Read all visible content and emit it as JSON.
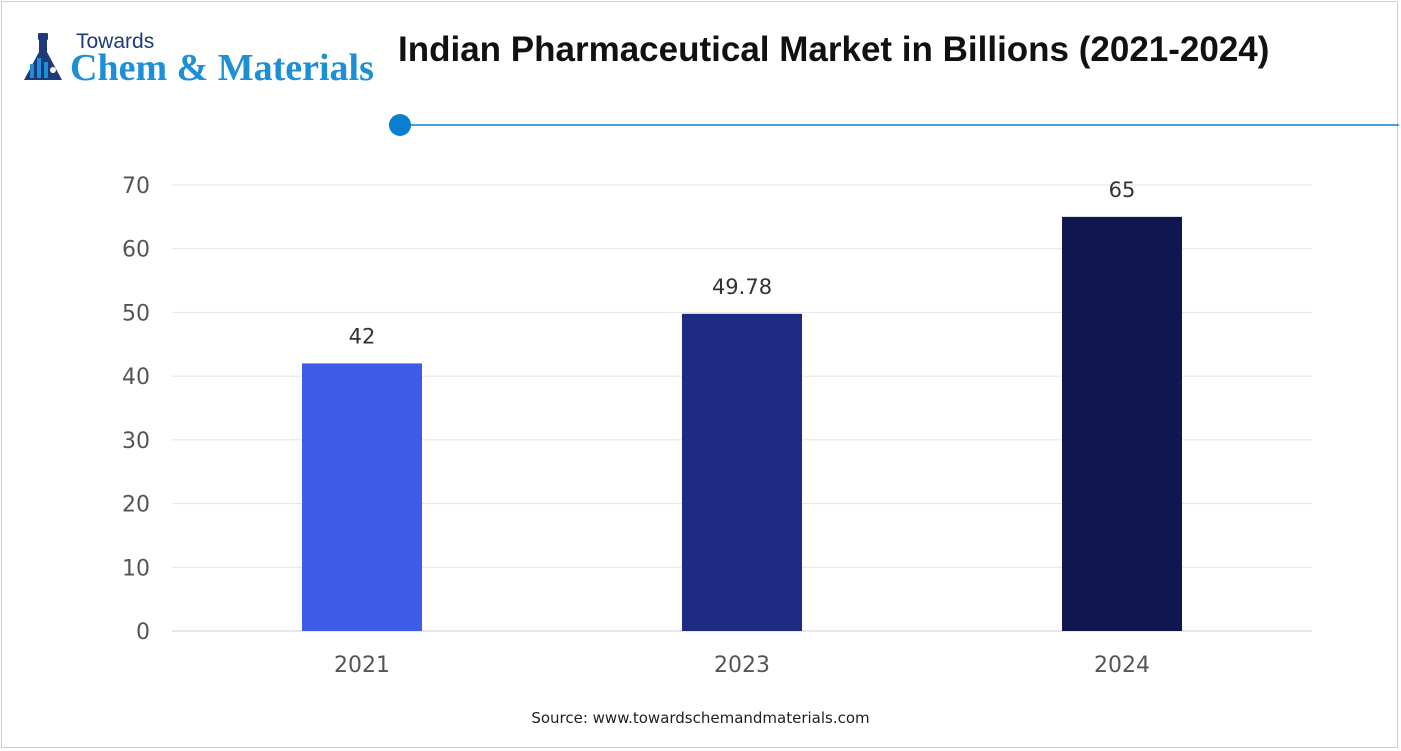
{
  "logo": {
    "towards": "Towards",
    "main": "Chem & Materials"
  },
  "colors": {
    "bar_2021": "#3d5ce8",
    "bar_2023": "#1d2c82",
    "bar_2024": "#0f1650",
    "accent": "#0a7fd1"
  },
  "chart_data": {
    "type": "bar",
    "title": "Indian Pharmaceutical Market in Billions (2021-2024)",
    "categories": [
      "2021",
      "2023",
      "2024"
    ],
    "values": [
      42,
      49.78,
      65
    ],
    "data_labels": [
      "42",
      "49.78",
      "65"
    ],
    "ylim": [
      0,
      70
    ],
    "yticks": [
      "0",
      "10",
      "20",
      "30",
      "40",
      "50",
      "60",
      "70"
    ],
    "grid": true,
    "xlabel": "",
    "ylabel": ""
  },
  "source": "Source: www.towardschemandmaterials.com"
}
